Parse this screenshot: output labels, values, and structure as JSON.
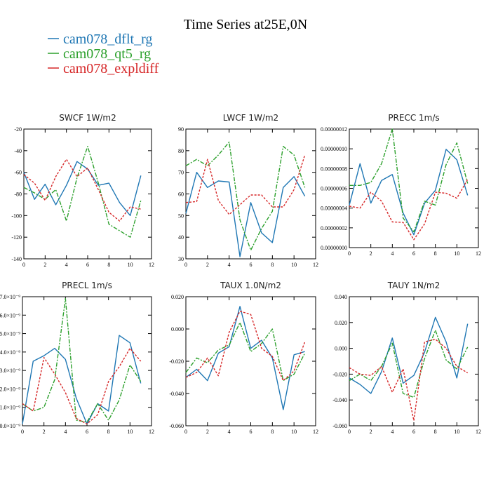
{
  "figure": {
    "title": "Time Series at25E,0N"
  },
  "legend": [
    {
      "name": "cam078_dflt_rg",
      "color": "#1f77b4",
      "style": "solid"
    },
    {
      "name": "cam078_qt5_rg",
      "color": "#2ca02c",
      "style": "dashdot"
    },
    {
      "name": "cam078_expldiff",
      "color": "#d62728",
      "style": "dotted"
    }
  ],
  "chart_data": [
    {
      "type": "line",
      "title": "SWCF  1W/m2",
      "x": [
        0,
        1,
        2,
        3,
        4,
        5,
        6,
        7,
        8,
        9,
        10,
        11
      ],
      "xlim": [
        0,
        12
      ],
      "xticks": [
        0,
        2,
        4,
        6,
        8,
        10,
        12
      ],
      "xtick_labels": [
        "0",
        "2",
        "4",
        "6",
        "8",
        "10",
        "12"
      ],
      "ylim": [
        -140,
        -20
      ],
      "yticks": [
        -140,
        -120,
        -100,
        -80,
        -60,
        -40,
        -20
      ],
      "ytick_labels": [
        "-140",
        "-120",
        "-100",
        "-80",
        "-60",
        "-40",
        "-20"
      ],
      "series": [
        {
          "name": "cam078_dflt_rg",
          "values": [
            -60,
            -85,
            -71,
            -90,
            -72,
            -50,
            -57,
            -72,
            -70,
            -88,
            -100,
            -63
          ]
        },
        {
          "name": "cam078_qt5_rg",
          "values": [
            -74,
            -79,
            -85,
            -76,
            -105,
            -65,
            -36,
            -70,
            -108,
            -114,
            -120,
            -86
          ]
        },
        {
          "name": "cam078_expldiff",
          "values": [
            -62,
            -70,
            -86,
            -64,
            -48,
            -64,
            -56,
            -76,
            -97,
            -105,
            -92,
            -94
          ]
        }
      ]
    },
    {
      "type": "line",
      "title": "LWCF  1W/m2",
      "x": [
        0,
        1,
        2,
        3,
        4,
        5,
        6,
        7,
        8,
        9,
        10,
        11
      ],
      "xlim": [
        0,
        12
      ],
      "xticks": [
        0,
        2,
        4,
        6,
        8,
        10,
        12
      ],
      "xtick_labels": [
        "0",
        "2",
        "4",
        "6",
        "8",
        "10",
        "12"
      ],
      "ylim": [
        30,
        90
      ],
      "yticks": [
        30,
        40,
        50,
        60,
        70,
        80,
        90
      ],
      "ytick_labels": [
        "30",
        "40",
        "50",
        "60",
        "70",
        "80",
        "90"
      ],
      "series": [
        {
          "name": "cam078_dflt_rg",
          "values": [
            51,
            70,
            63,
            66,
            65.5,
            31,
            56,
            42,
            37.5,
            63,
            68,
            59
          ]
        },
        {
          "name": "cam078_qt5_rg",
          "values": [
            73,
            76,
            73,
            78,
            84,
            48,
            34,
            44,
            52,
            82,
            78,
            63
          ]
        },
        {
          "name": "cam078_expldiff",
          "values": [
            56,
            56.5,
            76,
            57,
            50.5,
            55,
            59.5,
            59.5,
            54,
            54,
            62,
            78
          ]
        }
      ]
    },
    {
      "type": "line",
      "title": "PRECC  1m/s",
      "x": [
        0,
        1,
        2,
        3,
        4,
        5,
        6,
        7,
        8,
        9,
        10,
        11
      ],
      "xlim": [
        0,
        12
      ],
      "xticks": [
        0,
        2,
        4,
        6,
        8,
        10,
        12
      ],
      "xtick_labels": [
        "0",
        "2",
        "4",
        "6",
        "8",
        "10",
        "12"
      ],
      "ylim": [
        0,
        1.2e-07
      ],
      "yticks": [
        0,
        2e-08,
        4e-08,
        6e-08,
        8e-08,
        1e-07,
        1.2e-07
      ],
      "ytick_labels": [
        "0.00000000",
        "0.00000002",
        "0.00000004",
        "0.00000006",
        "0.00000008",
        "0.00000010",
        "0.00000012"
      ],
      "series": [
        {
          "name": "cam078_dflt_rg",
          "values": [
            4.3e-08,
            8.5e-08,
            4.5e-08,
            6.8e-08,
            7.4e-08,
            3.5e-08,
            1.3e-08,
            4.5e-08,
            5.8e-08,
            9.95e-08,
            8.9e-08,
            5.3e-08
          ]
        },
        {
          "name": "cam078_qt5_rg",
          "values": [
            6.3e-08,
            6.3e-08,
            6.6e-08,
            8.5e-08,
            1.2e-07,
            3e-08,
            1.6e-08,
            4.7e-08,
            4.3e-08,
            8.4e-08,
            1.06e-07,
            6.5e-08
          ]
        },
        {
          "name": "cam078_expldiff",
          "values": [
            4.2e-08,
            4e-08,
            5.6e-08,
            4.7e-08,
            2.6e-08,
            2.55e-08,
            8e-09,
            2.4e-08,
            5.6e-08,
            5.5e-08,
            5e-08,
            6.9e-08
          ]
        }
      ]
    },
    {
      "type": "line",
      "title": "PRECL  1m/s",
      "x": [
        0,
        1,
        2,
        3,
        4,
        5,
        6,
        7,
        8,
        9,
        10,
        11
      ],
      "xlim": [
        0,
        12
      ],
      "xticks": [
        0,
        2,
        4,
        6,
        8,
        10,
        12
      ],
      "xtick_labels": [
        "0",
        "2",
        "4",
        "6",
        "8",
        "10",
        "12"
      ],
      "ylim": [
        0,
        7e-09
      ],
      "yticks": [
        0,
        1e-09,
        2e-09,
        3e-09,
        4e-09,
        5e-09,
        6e-09,
        7e-09
      ],
      "ytick_labels": [
        "0.0×10⁻⁹",
        "1.0×10⁻⁹",
        "2.0×10⁻⁹",
        "3.0×10⁻⁹",
        "4.0×10⁻⁹",
        "5.0×10⁻⁹",
        "6.0×10⁻⁹",
        "7.0×10⁻⁹"
      ],
      "series": [
        {
          "name": "cam078_dflt_rg",
          "values": [
            1e-10,
            3.5e-09,
            3.8e-09,
            4.2e-09,
            3.6e-09,
            1.5e-09,
            1e-10,
            1.2e-09,
            8e-10,
            4.9e-09,
            4.5e-09,
            2.3e-09
          ]
        },
        {
          "name": "cam078_qt5_rg",
          "values": [
            1.2e-09,
            8e-10,
            1e-09,
            2.5e-09,
            6.9e-09,
            3e-10,
            2e-10,
            1.2e-09,
            3e-10,
            1.4e-09,
            3.3e-09,
            2.4e-09
          ]
        },
        {
          "name": "cam078_expldiff",
          "values": [
            1.2e-09,
            8e-10,
            3.7e-09,
            2.8e-09,
            1.8e-09,
            4e-10,
            1e-10,
            6e-10,
            2.4e-09,
            3.2e-09,
            4.2e-09,
            3.5e-09
          ]
        }
      ]
    },
    {
      "type": "line",
      "title": "TAUX  1.0N/m2",
      "x": [
        0,
        1,
        2,
        3,
        4,
        5,
        6,
        7,
        8,
        9,
        10,
        11
      ],
      "xlim": [
        0,
        12
      ],
      "xticks": [
        0,
        2,
        4,
        6,
        8,
        10,
        12
      ],
      "xtick_labels": [
        "0",
        "2",
        "4",
        "6",
        "8",
        "10",
        "12"
      ],
      "ylim": [
        -0.06,
        0.02
      ],
      "yticks": [
        -0.06,
        -0.04,
        -0.02,
        0,
        0.02
      ],
      "ytick_labels": [
        "-0.060",
        "-0.040",
        "-0.020",
        "0.000",
        "0.020"
      ],
      "series": [
        {
          "name": "cam078_dflt_rg",
          "values": [
            -0.03,
            -0.025,
            -0.032,
            -0.015,
            -0.011,
            0.014,
            -0.012,
            -0.007,
            -0.018,
            -0.05,
            -0.016,
            -0.014
          ]
        },
        {
          "name": "cam078_qt5_rg",
          "values": [
            -0.027,
            -0.018,
            -0.021,
            -0.013,
            -0.01,
            0.004,
            -0.014,
            -0.009,
            0.0,
            -0.032,
            -0.028,
            -0.015
          ]
        },
        {
          "name": "cam078_expldiff",
          "values": [
            -0.03,
            -0.027,
            -0.018,
            -0.029,
            -0.002,
            0.011,
            0.009,
            -0.012,
            -0.017,
            -0.032,
            -0.026,
            -0.008
          ]
        }
      ]
    },
    {
      "type": "line",
      "title": "TAUY  1N/m2",
      "x": [
        0,
        1,
        2,
        3,
        4,
        5,
        6,
        7,
        8,
        9,
        10,
        11
      ],
      "xlim": [
        0,
        12
      ],
      "xticks": [
        0,
        2,
        4,
        6,
        8,
        10,
        12
      ],
      "xtick_labels": [
        "0",
        "2",
        "4",
        "6",
        "8",
        "10",
        "12"
      ],
      "ylim": [
        -0.06,
        0.04
      ],
      "yticks": [
        -0.06,
        -0.04,
        -0.02,
        0,
        0.02,
        0.04
      ],
      "ytick_labels": [
        "-0.060",
        "-0.040",
        "-0.020",
        "0.000",
        "0.020",
        "0.040"
      ],
      "series": [
        {
          "name": "cam078_dflt_rg",
          "values": [
            -0.023,
            -0.028,
            -0.035,
            -0.018,
            0.008,
            -0.027,
            -0.021,
            -0.003,
            0.024,
            0.005,
            -0.023,
            0.019
          ]
        },
        {
          "name": "cam078_qt5_rg",
          "values": [
            -0.025,
            -0.02,
            -0.025,
            -0.014,
            0.004,
            -0.035,
            -0.038,
            -0.008,
            0.014,
            -0.009,
            -0.016,
            0.001
          ]
        },
        {
          "name": "cam078_expldiff",
          "values": [
            -0.015,
            -0.02,
            -0.021,
            -0.014,
            -0.034,
            -0.016,
            -0.056,
            0.005,
            0.007,
            0.0,
            -0.014,
            -0.019
          ]
        }
      ]
    }
  ]
}
